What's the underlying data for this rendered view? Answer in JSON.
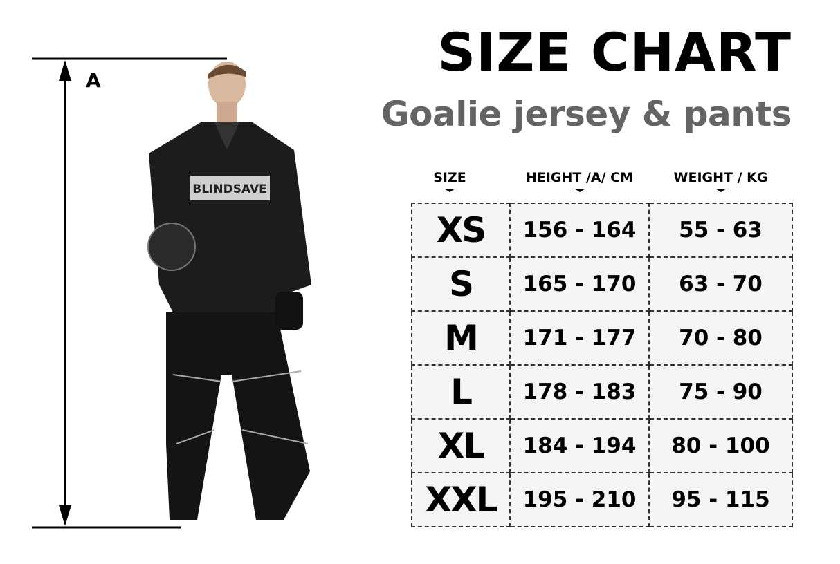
{
  "title": "SIZE CHART",
  "subtitle": "Goalie jersey & pants",
  "measure_label": "A",
  "jersey_logo": "BLINDSAVE",
  "table": {
    "headers": [
      "SIZE",
      "HEIGHT /A/ CM",
      "WEIGHT / KG"
    ],
    "rows": [
      {
        "size": "XS",
        "height": "156 - 164",
        "weight": "55 - 63"
      },
      {
        "size": "S",
        "height": "165 - 170",
        "weight": "63 - 70"
      },
      {
        "size": "M",
        "height": "171 - 177",
        "weight": "70 - 80"
      },
      {
        "size": "L",
        "height": "178 - 183",
        "weight": "75 - 90"
      },
      {
        "size": "XL",
        "height": "184 - 194",
        "weight": "80 - 100"
      },
      {
        "size": "XXL",
        "height": "195 - 210",
        "weight": "95 - 115"
      }
    ]
  }
}
